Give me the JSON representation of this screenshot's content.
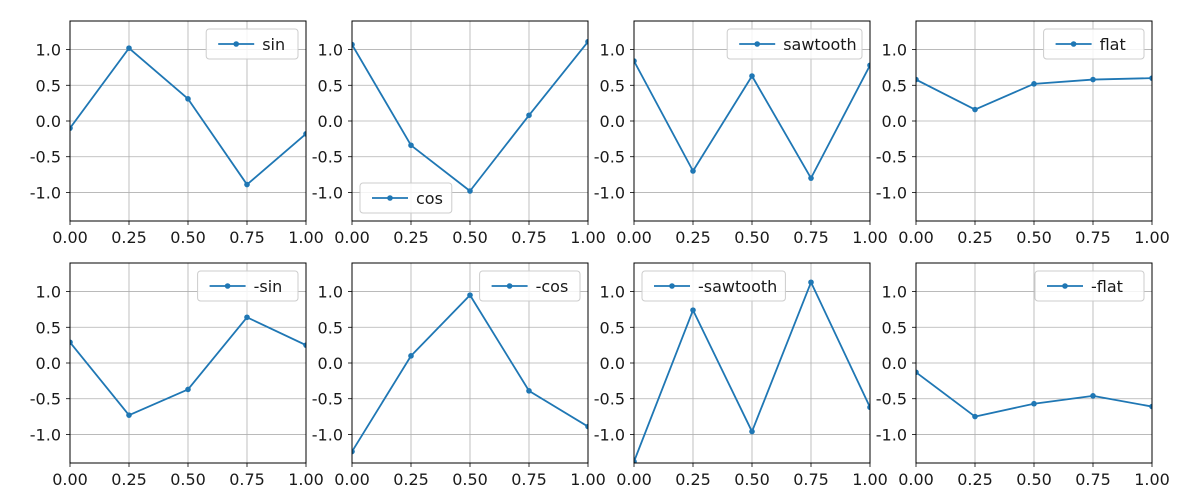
{
  "figure": {
    "line_color": "#1f77b4",
    "grid": true,
    "layout": "2 rows x 4 columns"
  },
  "chart_data": [
    {
      "type": "line",
      "x": [
        0.0,
        0.25,
        0.5,
        0.75,
        1.0
      ],
      "xlim": [
        0.0,
        1.0
      ],
      "ylim": [
        -1.4,
        1.4
      ],
      "xticks": [
        "0.00",
        "0.25",
        "0.50",
        "0.75",
        "1.00"
      ],
      "yticks": [
        "1.0",
        "0.5",
        "0.0",
        "-0.5",
        "-1.0"
      ],
      "grid": true,
      "legend_position": "upper right",
      "series": [
        {
          "name": "sin",
          "values": [
            -0.1,
            1.02,
            0.31,
            -0.89,
            -0.18
          ]
        }
      ]
    },
    {
      "type": "line",
      "x": [
        0.0,
        0.25,
        0.5,
        0.75,
        1.0
      ],
      "xlim": [
        0.0,
        1.0
      ],
      "ylim": [
        -1.4,
        1.4
      ],
      "xticks": [
        "0.00",
        "0.25",
        "0.50",
        "0.75",
        "1.00"
      ],
      "yticks": [
        "1.0",
        "0.5",
        "0.0",
        "-0.5",
        "-1.0"
      ],
      "grid": true,
      "legend_position": "lower left",
      "series": [
        {
          "name": "cos",
          "values": [
            1.07,
            -0.34,
            -0.98,
            0.08,
            1.11
          ]
        }
      ]
    },
    {
      "type": "line",
      "x": [
        0.0,
        0.25,
        0.5,
        0.75,
        1.0
      ],
      "xlim": [
        0.0,
        1.0
      ],
      "ylim": [
        -1.4,
        1.4
      ],
      "xticks": [
        "0.00",
        "0.25",
        "0.50",
        "0.75",
        "1.00"
      ],
      "yticks": [
        "1.0",
        "0.5",
        "0.0",
        "-0.5",
        "-1.0"
      ],
      "grid": true,
      "legend_position": "upper right",
      "series": [
        {
          "name": "sawtooth",
          "values": [
            0.84,
            -0.7,
            0.63,
            -0.8,
            0.78
          ]
        }
      ]
    },
    {
      "type": "line",
      "x": [
        0.0,
        0.25,
        0.5,
        0.75,
        1.0
      ],
      "xlim": [
        0.0,
        1.0
      ],
      "ylim": [
        -1.4,
        1.4
      ],
      "xticks": [
        "0.00",
        "0.25",
        "0.50",
        "0.75",
        "1.00"
      ],
      "yticks": [
        "1.0",
        "0.5",
        "0.0",
        "-0.5",
        "-1.0"
      ],
      "grid": true,
      "legend_position": "upper right",
      "series": [
        {
          "name": "flat",
          "values": [
            0.58,
            0.16,
            0.52,
            0.58,
            0.6
          ]
        }
      ]
    },
    {
      "type": "line",
      "x": [
        0.0,
        0.25,
        0.5,
        0.75,
        1.0
      ],
      "xlim": [
        0.0,
        1.0
      ],
      "ylim": [
        -1.4,
        1.4
      ],
      "xticks": [
        "0.00",
        "0.25",
        "0.50",
        "0.75",
        "1.00"
      ],
      "yticks": [
        "1.0",
        "0.5",
        "0.0",
        "-0.5",
        "-1.0"
      ],
      "grid": true,
      "legend_position": "upper right",
      "series": [
        {
          "name": "-sin",
          "values": [
            0.29,
            -0.73,
            -0.37,
            0.64,
            0.25
          ]
        }
      ]
    },
    {
      "type": "line",
      "x": [
        0.0,
        0.25,
        0.5,
        0.75,
        1.0
      ],
      "xlim": [
        0.0,
        1.0
      ],
      "ylim": [
        -1.4,
        1.4
      ],
      "xticks": [
        "0.00",
        "0.25",
        "0.50",
        "0.75",
        "1.00"
      ],
      "yticks": [
        "1.0",
        "0.5",
        "0.0",
        "-0.5",
        "-1.0"
      ],
      "grid": true,
      "legend_position": "upper right",
      "series": [
        {
          "name": "-cos",
          "values": [
            -1.24,
            0.1,
            0.95,
            -0.39,
            -0.89
          ]
        }
      ]
    },
    {
      "type": "line",
      "x": [
        0.0,
        0.25,
        0.5,
        0.75,
        1.0
      ],
      "xlim": [
        0.0,
        1.0
      ],
      "ylim": [
        -1.4,
        1.4
      ],
      "xticks": [
        "0.00",
        "0.25",
        "0.50",
        "0.75",
        "1.00"
      ],
      "yticks": [
        "1.0",
        "0.5",
        "0.0",
        "-0.5",
        "-1.0"
      ],
      "grid": true,
      "legend_position": "upper left",
      "series": [
        {
          "name": "-sawtooth",
          "values": [
            -1.38,
            0.74,
            -0.96,
            1.13,
            -0.62
          ]
        }
      ]
    },
    {
      "type": "line",
      "x": [
        0.0,
        0.25,
        0.5,
        0.75,
        1.0
      ],
      "xlim": [
        0.0,
        1.0
      ],
      "ylim": [
        -1.4,
        1.4
      ],
      "xticks": [
        "0.00",
        "0.25",
        "0.50",
        "0.75",
        "1.00"
      ],
      "yticks": [
        "1.0",
        "0.5",
        "0.0",
        "-0.5",
        "-1.0"
      ],
      "grid": true,
      "legend_position": "upper right",
      "series": [
        {
          "name": "-flat",
          "values": [
            -0.13,
            -0.75,
            -0.57,
            -0.46,
            -0.61
          ]
        }
      ]
    }
  ]
}
